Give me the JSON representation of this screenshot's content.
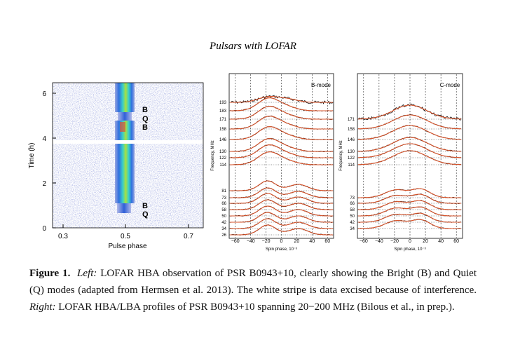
{
  "header": {
    "title": "Pulsars with LOFAR"
  },
  "figure": {
    "left": {
      "y_label": "Time (h)",
      "x_label": "Pulse phase",
      "y_ticks": [
        "0",
        "2",
        "4",
        "6"
      ],
      "x_ticks": [
        "0.3",
        "0.5",
        "0.7"
      ],
      "mode_labels": [
        "B",
        "Q",
        "B",
        "B",
        "Q"
      ]
    },
    "middle": {
      "mode": "B-mode",
      "y_label": "Frequency, MHz",
      "x_label": "Spin phase, 10⁻³",
      "x_ticks": [
        "−60",
        "−40",
        "−20",
        "0",
        "20",
        "40",
        "60"
      ],
      "freqs": [
        "193",
        "183",
        "171",
        "158",
        "146",
        "130",
        "122",
        "114",
        "81",
        "73",
        "66",
        "58",
        "50",
        "42",
        "34",
        "26"
      ]
    },
    "right": {
      "mode": "C-mode",
      "y_label": "Frequency, MHz",
      "x_label": "Spin phase, 10⁻³",
      "x_ticks": [
        "−60",
        "−40",
        "−20",
        "0",
        "20",
        "40",
        "60"
      ],
      "freqs": [
        "171",
        "158",
        "146",
        "130",
        "122",
        "114",
        "73",
        "66",
        "58",
        "50",
        "42",
        "34"
      ]
    }
  },
  "caption": {
    "label": "Figure 1.",
    "left_label": "Left:",
    "left_text": "LOFAR HBA observation of PSR B0943+10, clearly showing the Bright (B) and Quiet (Q) modes (adapted from Hermsen et al. 2013). The white stripe is data excised because of interference.",
    "right_label": "Right:",
    "right_text": "LOFAR HBA/LBA profiles of PSR B0943+10 spanning 20−200 MHz (Bilous et al., in prep.)."
  }
}
